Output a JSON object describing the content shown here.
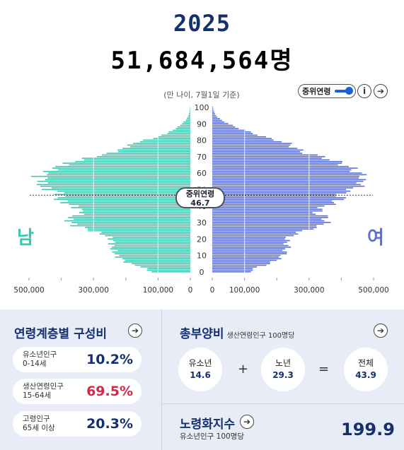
{
  "header": {
    "year": "2025",
    "total_population": "51,684,564명",
    "basis_note": "(만 나이, 7월1일 기준)",
    "median_toggle_label": "중위연령",
    "info_icon": "info-icon",
    "next_icon": "arrow-right-icon"
  },
  "pyramid": {
    "male_label": "남",
    "female_label": "여",
    "median_label": "중위연령",
    "median_value": "46.7",
    "age_ticks": [
      "0",
      "10",
      "20",
      "30",
      "40",
      "50",
      "60",
      "70",
      "80",
      "90",
      "100"
    ],
    "male_axis_labels": [
      "500,000",
      "300,000",
      "100,000",
      "0"
    ],
    "female_axis_labels": [
      "0",
      "100,000",
      "300,000",
      "500,000"
    ],
    "colors": {
      "male": "#3ec7b0",
      "female": "#5a6fd8"
    }
  },
  "chart_data": {
    "type": "bar",
    "orientation": "horizontal-pyramid",
    "ylabel": "",
    "xlim": [
      0,
      500000
    ],
    "ylim": [
      0,
      100
    ],
    "age_points": [
      0,
      3,
      5,
      8,
      10,
      12,
      14,
      16,
      18,
      20,
      22,
      24,
      26,
      28,
      30,
      32,
      34,
      36,
      38,
      40,
      42,
      44,
      46,
      48,
      50,
      52,
      54,
      56,
      58,
      60,
      62,
      64,
      66,
      68,
      70,
      72,
      74,
      76,
      78,
      80,
      82,
      84,
      86,
      88,
      90,
      92,
      94,
      96,
      98,
      100
    ],
    "series": [
      {
        "name": "남",
        "values": [
          120000,
          150000,
          190000,
          215000,
          230000,
          235000,
          240000,
          245000,
          240000,
          245000,
          260000,
          290000,
          320000,
          355000,
          370000,
          380000,
          360000,
          330000,
          345000,
          360000,
          390000,
          410000,
          405000,
          400000,
          440000,
          460000,
          465000,
          450000,
          470000,
          445000,
          430000,
          410000,
          380000,
          340000,
          300000,
          250000,
          220000,
          195000,
          180000,
          140000,
          100000,
          75000,
          55000,
          38000,
          26000,
          15000,
          8000,
          4000,
          2000,
          1000
        ]
      },
      {
        "name": "여",
        "values": [
          115000,
          140000,
          180000,
          205000,
          220000,
          225000,
          230000,
          235000,
          230000,
          230000,
          245000,
          270000,
          300000,
          340000,
          350000,
          355000,
          345000,
          320000,
          335000,
          350000,
          380000,
          400000,
          395000,
          400000,
          435000,
          450000,
          470000,
          455000,
          475000,
          450000,
          440000,
          420000,
          400000,
          370000,
          340000,
          290000,
          270000,
          250000,
          235000,
          200000,
          160000,
          130000,
          100000,
          72000,
          50000,
          30000,
          16000,
          8000,
          4000,
          2000
        ]
      }
    ]
  },
  "structure": {
    "title": "연령계층별 구성비",
    "groups": [
      {
        "name1": "유소년인구",
        "name2": "0-14세",
        "pct": "10.2%",
        "color": "#14306e"
      },
      {
        "name1": "생산연령인구",
        "name2": "15-64세",
        "pct": "69.5%",
        "color": "#d2284a"
      },
      {
        "name1": "고령인구",
        "name2": "65세 이상",
        "pct": "20.3%",
        "color": "#14306e"
      }
    ]
  },
  "dependency": {
    "title": "총부양비",
    "subtitle": "생산연령인구 100명당",
    "youth_label": "유소년",
    "youth_value": "14.6",
    "plus": "+",
    "elderly_label": "노년",
    "elderly_value": "29.3",
    "equals": "=",
    "total_label": "전체",
    "total_value": "43.9"
  },
  "aging": {
    "title": "노령화지수",
    "subtitle": "유소년인구 100명당",
    "value": "199.9"
  }
}
